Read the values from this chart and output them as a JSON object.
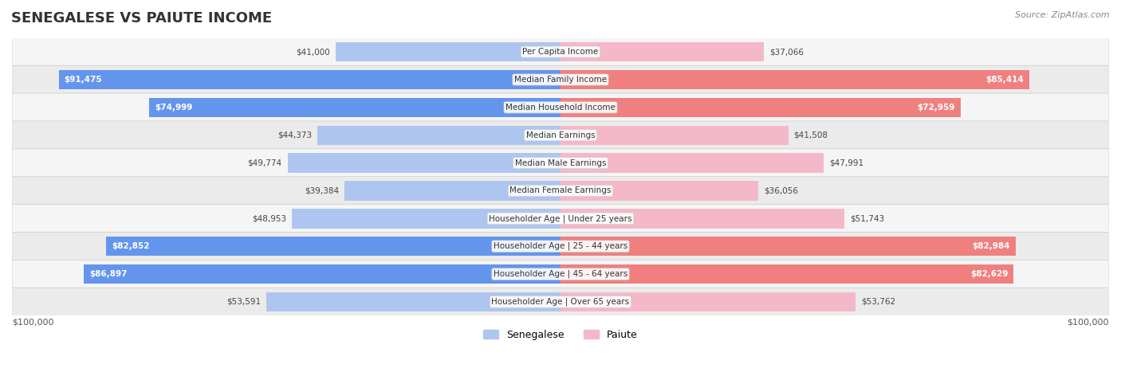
{
  "title": "SENEGALESE VS PAIUTE INCOME",
  "source": "Source: ZipAtlas.com",
  "categories": [
    "Per Capita Income",
    "Median Family Income",
    "Median Household Income",
    "Median Earnings",
    "Median Male Earnings",
    "Median Female Earnings",
    "Householder Age | Under 25 years",
    "Householder Age | 25 - 44 years",
    "Householder Age | 45 - 64 years",
    "Householder Age | Over 65 years"
  ],
  "senegalese_values": [
    41000,
    91475,
    74999,
    44373,
    49774,
    39384,
    48953,
    82852,
    86897,
    53591
  ],
  "paiute_values": [
    37066,
    85414,
    72959,
    41508,
    47991,
    36056,
    51743,
    82984,
    82629,
    53762
  ],
  "senegalese_labels": [
    "$41,000",
    "$91,475",
    "$74,999",
    "$44,373",
    "$49,774",
    "$39,384",
    "$48,953",
    "$82,852",
    "$86,897",
    "$53,591"
  ],
  "paiute_labels": [
    "$37,066",
    "$85,414",
    "$72,959",
    "$41,508",
    "$47,991",
    "$36,056",
    "$51,743",
    "$82,984",
    "$82,629",
    "$53,762"
  ],
  "max_value": 100000,
  "senegalese_color_dark": "#6495ED",
  "senegalese_color_light": "#aec6ef",
  "paiute_color_dark": "#F08080",
  "paiute_color_light": "#f4b8c8",
  "label_threshold": 70000,
  "background_color": "#ffffff",
  "row_bg_color": "#f0f0f0",
  "row_alt_color": "#e8e8e8",
  "xlabel_left": "$100,000",
  "xlabel_right": "$100,000",
  "legend_senegalese": "Senegalese",
  "legend_paiute": "Paiute"
}
